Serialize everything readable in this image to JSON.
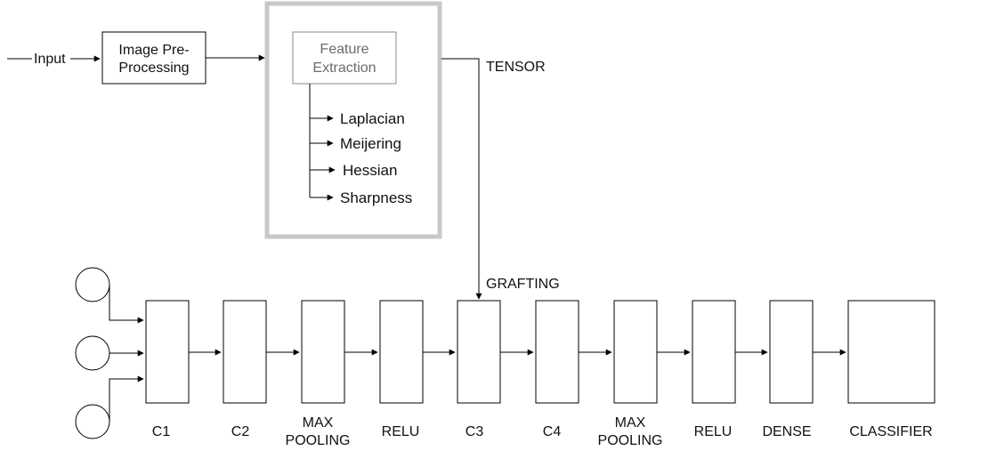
{
  "input_label": "Input",
  "preprocessing": {
    "line1": "Image Pre-",
    "line2": "Processing"
  },
  "feature_extraction": {
    "line1": "Feature",
    "line2": "Extraction",
    "features": [
      "Laplacian",
      "Meijering",
      "Hessian",
      "Sharpness"
    ]
  },
  "tensor_label": "TENSOR",
  "grafting_label": "GRAFTING",
  "layers": [
    {
      "id": "c1",
      "lines": [
        "C1"
      ]
    },
    {
      "id": "c2",
      "lines": [
        "C2"
      ]
    },
    {
      "id": "maxpool1",
      "lines": [
        "MAX",
        "POOLING"
      ]
    },
    {
      "id": "relu1",
      "lines": [
        "RELU"
      ]
    },
    {
      "id": "c3",
      "lines": [
        "C3"
      ]
    },
    {
      "id": "c4",
      "lines": [
        "C4"
      ]
    },
    {
      "id": "maxpool2",
      "lines": [
        "MAX",
        "POOLING"
      ]
    },
    {
      "id": "relu2",
      "lines": [
        "RELU"
      ]
    },
    {
      "id": "dense",
      "lines": [
        "DENSE"
      ]
    },
    {
      "id": "classifier",
      "lines": [
        "CLASSIFIER"
      ]
    }
  ],
  "colors": {
    "stroke": "#000000",
    "group_border": "#c8c8c8",
    "muted_text": "#6b6b6b"
  }
}
